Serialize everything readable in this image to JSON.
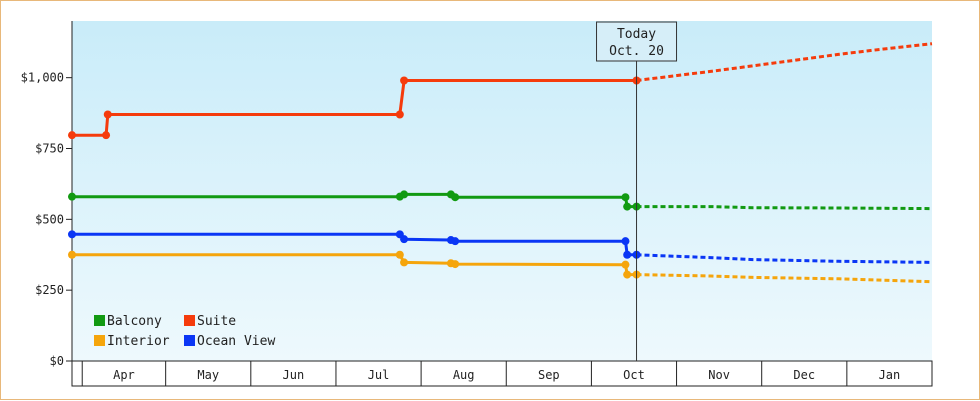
{
  "chart_data": {
    "type": "line",
    "title": "",
    "xlabel": "",
    "ylabel": "",
    "ylim": [
      0,
      1200
    ],
    "yticks": [
      {
        "value": 0,
        "label": "$0"
      },
      {
        "value": 250,
        "label": "$250"
      },
      {
        "value": 500,
        "label": "$500"
      },
      {
        "value": 750,
        "label": "$750"
      },
      {
        "value": 1000,
        "label": "$1,000"
      }
    ],
    "x_months": [
      "Apr",
      "May",
      "Jun",
      "Jul",
      "Aug",
      "Sep",
      "Oct",
      "Nov",
      "Dec",
      "Jan"
    ],
    "x_range": [
      0,
      10.1
    ],
    "today": {
      "label_line1": "Today",
      "label_line2": "Oct. 20",
      "x": 6.63
    },
    "legend": {
      "placement": "bottom-left"
    },
    "series": [
      {
        "name": "Balcony",
        "color": "#129a12",
        "points": [
          [
            0,
            580
          ],
          [
            3.85,
            580
          ],
          [
            3.9,
            588
          ],
          [
            4.45,
            588
          ],
          [
            4.5,
            578
          ],
          [
            6.5,
            578
          ],
          [
            6.52,
            545
          ],
          [
            6.63,
            545
          ]
        ],
        "forecast": [
          [
            6.63,
            545
          ],
          [
            7.5,
            545
          ],
          [
            8,
            541
          ],
          [
            9,
            540
          ],
          [
            10.1,
            538
          ]
        ]
      },
      {
        "name": "Suite",
        "color": "#f53b0c",
        "points": [
          [
            0,
            797
          ],
          [
            0.4,
            797
          ],
          [
            0.42,
            870
          ],
          [
            3.85,
            870
          ],
          [
            3.9,
            990
          ],
          [
            6.63,
            990
          ]
        ],
        "forecast": [
          [
            6.63,
            990
          ],
          [
            7.5,
            1022
          ],
          [
            8,
            1042
          ],
          [
            8.5,
            1062
          ],
          [
            9,
            1082
          ],
          [
            9.5,
            1100
          ],
          [
            10.1,
            1120
          ]
        ]
      },
      {
        "name": "Interior",
        "color": "#f5a50c",
        "points": [
          [
            0,
            375
          ],
          [
            3.85,
            375
          ],
          [
            3.9,
            348
          ],
          [
            4.45,
            345
          ],
          [
            4.5,
            342
          ],
          [
            6.5,
            340
          ],
          [
            6.52,
            305
          ],
          [
            6.63,
            305
          ]
        ],
        "forecast": [
          [
            6.63,
            305
          ],
          [
            7.5,
            300
          ],
          [
            8,
            295
          ],
          [
            9,
            290
          ],
          [
            10.1,
            280
          ]
        ]
      },
      {
        "name": "Ocean View",
        "color": "#0a36f5",
        "points": [
          [
            0,
            447
          ],
          [
            3.85,
            447
          ],
          [
            3.9,
            430
          ],
          [
            4.45,
            427
          ],
          [
            4.5,
            423
          ],
          [
            6.5,
            423
          ],
          [
            6.52,
            375
          ],
          [
            6.63,
            375
          ]
        ],
        "forecast": [
          [
            6.63,
            375
          ],
          [
            7.5,
            365
          ],
          [
            8,
            358
          ],
          [
            9,
            352
          ],
          [
            10.1,
            348
          ]
        ]
      }
    ],
    "markers_note": "dots at price-change points"
  }
}
